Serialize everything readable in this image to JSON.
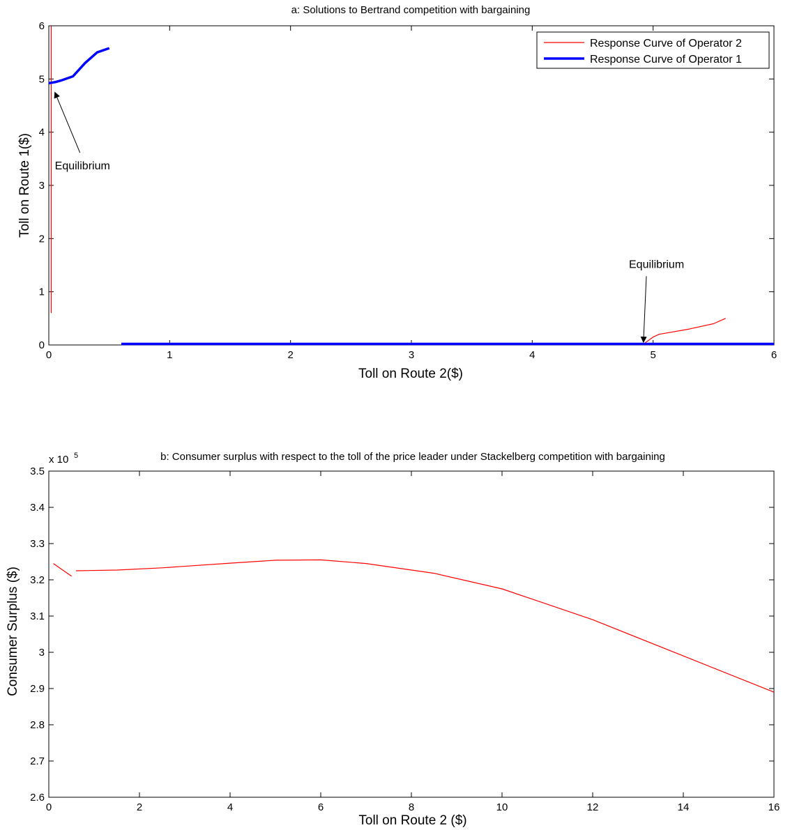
{
  "chart_data": [
    {
      "type": "line",
      "title": "a: Solutions to Bertrand competition with bargaining",
      "xlabel": "Toll on Route 2($)",
      "ylabel": "Toll on Route 1($)",
      "xlim": [
        0,
        6
      ],
      "ylim": [
        0,
        6
      ],
      "xticks": [
        "0",
        "1",
        "2",
        "3",
        "4",
        "5",
        "6"
      ],
      "yticks": [
        "0",
        "1",
        "2",
        "3",
        "4",
        "5",
        "6"
      ],
      "legend_position": "top-right",
      "series": [
        {
          "name": "Response Curve of Operator 2",
          "color": "#ff0000",
          "segments": [
            [
              [
                0.02,
                0.6
              ],
              [
                0.02,
                6.0
              ]
            ],
            [
              [
                4.92,
                0.0
              ],
              [
                4.94,
                0.05
              ],
              [
                5.0,
                0.15
              ],
              [
                5.05,
                0.2
              ],
              [
                5.1,
                0.22
              ],
              [
                5.3,
                0.3
              ],
              [
                5.5,
                0.4
              ],
              [
                5.6,
                0.5
              ]
            ]
          ]
        },
        {
          "name": "Response Curve of Operator 1",
          "color": "#0000ff",
          "segments": [
            [
              [
                0.0,
                4.92
              ],
              [
                0.05,
                4.94
              ],
              [
                0.1,
                4.97
              ],
              [
                0.2,
                5.05
              ],
              [
                0.3,
                5.3
              ],
              [
                0.4,
                5.5
              ],
              [
                0.5,
                5.58
              ]
            ],
            [
              [
                0.6,
                0.02
              ],
              [
                6.0,
                0.02
              ]
            ]
          ]
        }
      ],
      "annotations": [
        {
          "text": "Equilibrium",
          "x": 0.05,
          "y": 3.3,
          "arrow_to": [
            0.05,
            4.75
          ]
        },
        {
          "text": "Equilibrium",
          "x": 4.8,
          "y": 1.45,
          "arrow_to": [
            4.92,
            0.05
          ]
        }
      ]
    },
    {
      "type": "line",
      "title": "b: Consumer surplus with respect to the toll of the price leader under Stackelberg competition with bargaining",
      "xlabel": "Toll on Route 2 ($)",
      "ylabel": "Consumer Surplus ($)",
      "scale_label": "x 10",
      "scale_exponent": "5",
      "xlim": [
        0,
        16
      ],
      "ylim": [
        2.6,
        3.5
      ],
      "xticks": [
        "0",
        "2",
        "4",
        "6",
        "8",
        "10",
        "12",
        "14",
        "16"
      ],
      "yticks": [
        "2.6",
        "2.7",
        "2.8",
        "2.9",
        "3",
        "3.1",
        "3.2",
        "3.3",
        "3.4",
        "3.5"
      ],
      "series": [
        {
          "color": "#ff0000",
          "segments": [
            [
              [
                0.1,
                3.245
              ],
              [
                0.5,
                3.21
              ]
            ],
            [
              [
                0.6,
                3.225
              ],
              [
                1.5,
                3.227
              ],
              [
                2.5,
                3.233
              ],
              [
                4.0,
                3.246
              ],
              [
                5.0,
                3.254
              ],
              [
                6.0,
                3.255
              ],
              [
                7.0,
                3.245
              ],
              [
                8.5,
                3.218
              ],
              [
                10.0,
                3.175
              ],
              [
                12.0,
                3.09
              ],
              [
                14.0,
                2.99
              ],
              [
                16.0,
                2.89
              ]
            ]
          ]
        }
      ]
    }
  ]
}
